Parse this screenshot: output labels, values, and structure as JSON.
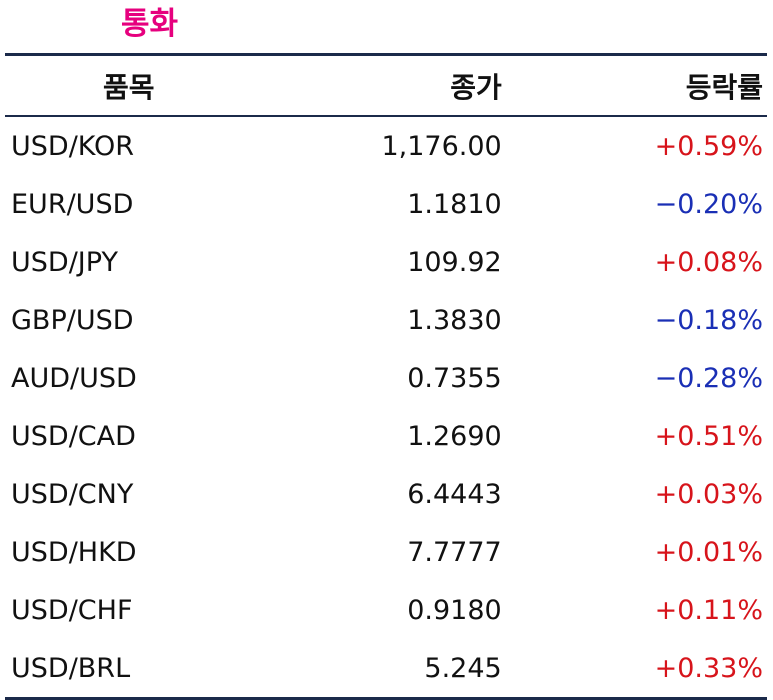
{
  "title": "통화",
  "colors": {
    "title": "#e6007e",
    "rule": "#1b2a4a",
    "up": "#d7141b",
    "down": "#1a2fb5"
  },
  "headers": {
    "item": "품목",
    "close": "종가",
    "change": "등락률"
  },
  "rows": [
    {
      "item": "USD/KOR",
      "close": "1,176.00",
      "change": "+0.59%",
      "dir": "up"
    },
    {
      "item": "EUR/USD",
      "close": "1.1810",
      "change": "−0.20%",
      "dir": "down"
    },
    {
      "item": "USD/JPY",
      "close": "109.92",
      "change": "+0.08%",
      "dir": "up"
    },
    {
      "item": "GBP/USD",
      "close": "1.3830",
      "change": "−0.18%",
      "dir": "down"
    },
    {
      "item": "AUD/USD",
      "close": "0.7355",
      "change": "−0.28%",
      "dir": "down"
    },
    {
      "item": "USD/CAD",
      "close": "1.2690",
      "change": "+0.51%",
      "dir": "up"
    },
    {
      "item": "USD/CNY",
      "close": "6.4443",
      "change": "+0.03%",
      "dir": "up"
    },
    {
      "item": "USD/HKD",
      "close": "7.7777",
      "change": "+0.01%",
      "dir": "up"
    },
    {
      "item": "USD/CHF",
      "close": "0.9180",
      "change": "+0.11%",
      "dir": "up"
    },
    {
      "item": "USD/BRL",
      "close": "5.245",
      "change": "+0.33%",
      "dir": "up"
    }
  ]
}
